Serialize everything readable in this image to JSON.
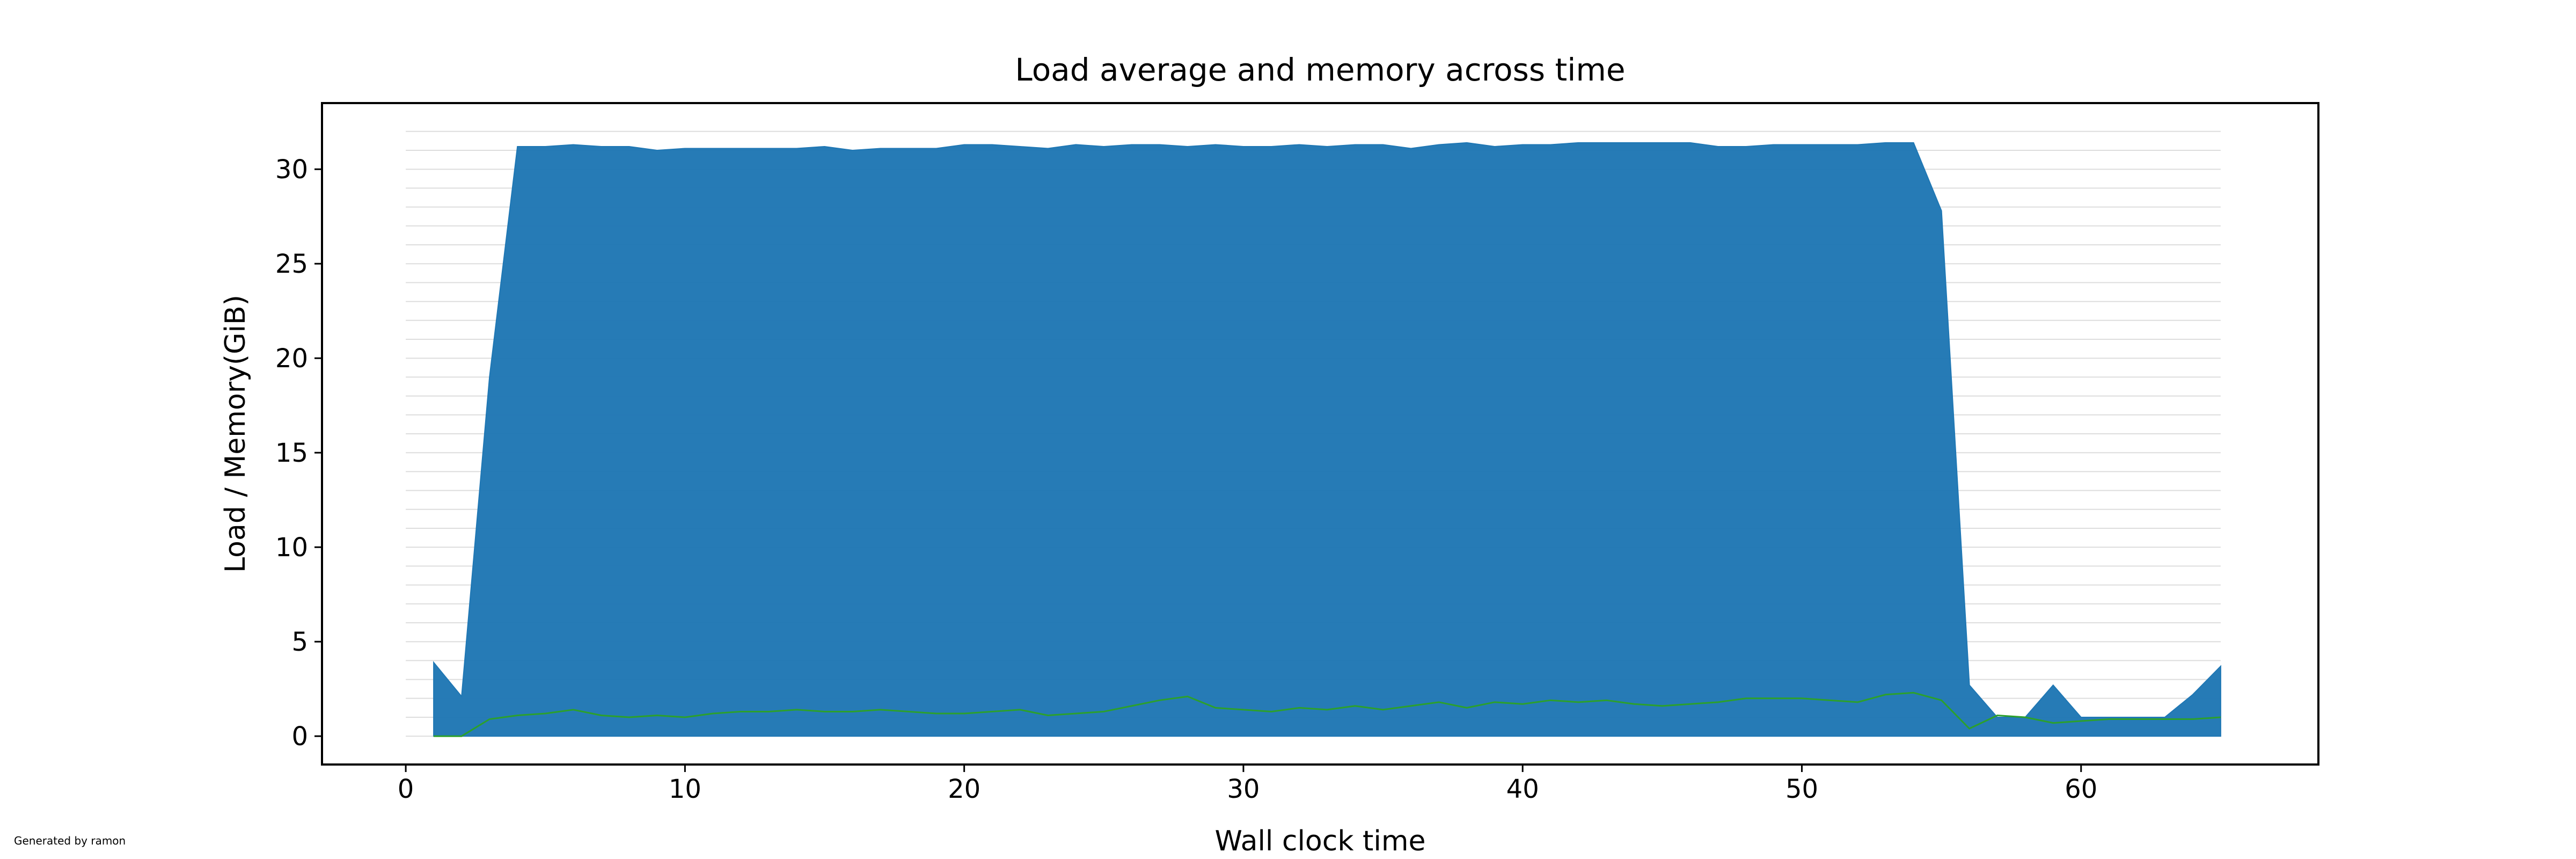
{
  "chart_data": {
    "type": "area",
    "title": "Load average and memory across time",
    "xlabel": "Wall clock time",
    "ylabel": "Load / Memory(GiB)",
    "xlim": [
      -3,
      68.5
    ],
    "ylim": [
      -1.5,
      33.5
    ],
    "xticks": [
      0,
      10,
      20,
      30,
      40,
      50,
      60
    ],
    "yticks": [
      0,
      5,
      10,
      15,
      20,
      25,
      30
    ],
    "x": [
      1,
      2,
      3,
      4,
      5,
      6,
      7,
      8,
      9,
      10,
      11,
      12,
      13,
      14,
      15,
      16,
      17,
      18,
      19,
      20,
      21,
      22,
      23,
      24,
      25,
      26,
      27,
      28,
      29,
      30,
      31,
      32,
      33,
      34,
      35,
      36,
      37,
      38,
      39,
      40,
      41,
      42,
      43,
      44,
      45,
      46,
      47,
      48,
      49,
      50,
      51,
      52,
      53,
      54,
      55,
      56,
      57,
      58,
      59,
      60,
      61,
      62,
      63,
      64,
      65
    ],
    "series": [
      {
        "values": [
          3.9,
          2.1,
          19.0,
          31.2,
          31.2,
          31.3,
          31.2,
          31.2,
          31.0,
          31.1,
          31.1,
          31.1,
          31.1,
          31.1,
          31.2,
          31.0,
          31.1,
          31.1,
          31.1,
          31.3,
          31.3,
          31.2,
          31.1,
          31.3,
          31.2,
          31.3,
          31.3,
          31.2,
          31.3,
          31.2,
          31.2,
          31.3,
          31.2,
          31.3,
          31.3,
          31.1,
          31.3,
          31.4,
          31.2,
          31.3,
          31.3,
          31.4,
          31.4,
          31.4,
          31.4,
          31.4,
          31.2,
          31.2,
          31.3,
          31.3,
          31.3,
          31.3,
          31.4,
          31.4,
          27.8,
          2.7,
          1.0,
          1.0,
          2.7,
          1.0,
          1.0,
          1.0,
          1.0,
          2.2,
          3.7
        ],
        "color": "#1f77b4"
      },
      {
        "values": [
          0.0,
          0.0,
          0.9,
          1.1,
          1.2,
          1.4,
          1.1,
          1.0,
          1.1,
          1.0,
          1.2,
          1.3,
          1.3,
          1.4,
          1.3,
          1.3,
          1.4,
          1.3,
          1.2,
          1.2,
          1.3,
          1.4,
          1.1,
          1.2,
          1.3,
          1.6,
          1.9,
          2.1,
          1.5,
          1.4,
          1.3,
          1.5,
          1.4,
          1.6,
          1.4,
          1.6,
          1.8,
          1.5,
          1.8,
          1.7,
          1.9,
          1.8,
          1.9,
          1.7,
          1.6,
          1.7,
          1.8,
          2.0,
          2.0,
          2.0,
          1.9,
          1.8,
          2.2,
          2.3,
          1.9,
          0.4,
          1.1,
          1.0,
          0.7,
          0.8,
          0.9,
          0.9,
          0.9,
          0.9,
          1.0
        ],
        "color": "#2ca02c"
      }
    ],
    "minor_grid": {
      "ymax": 32,
      "step": 1,
      "color": "#dddddd"
    }
  },
  "footer_note": "Generated by ramon"
}
